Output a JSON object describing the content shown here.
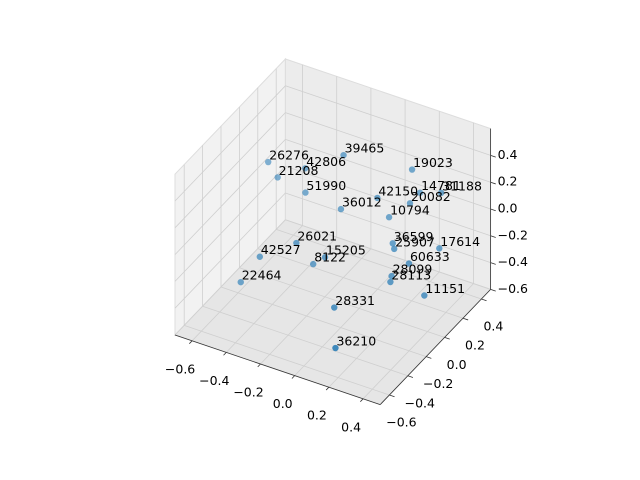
{
  "chart_data": {
    "type": "scatter3d",
    "color": "#1f77b4",
    "grid": true,
    "labels": [
      "39465",
      "26276",
      "42806",
      "21208",
      "19023",
      "42150",
      "14781",
      "31188",
      "20082",
      "51990",
      "36012",
      "10794",
      "26021",
      "36599",
      "25907",
      "17614",
      "15205",
      "42527",
      "8122",
      "60633",
      "22464",
      "28099",
      "28113",
      "11151",
      "28331",
      "36210"
    ],
    "x": [
      -0.15,
      -0.51,
      -0.32,
      -0.46,
      0.1,
      0.01,
      0.12,
      0.27,
      0.12,
      -0.33,
      -0.16,
      0.03,
      -0.27,
      0.1,
      0.13,
      0.27,
      -0.14,
      -0.43,
      -0.22,
      0.2,
      -0.52,
      0.12,
      0.14,
      0.29,
      0.0,
      0.12
    ],
    "y": [
      0.11,
      -0.04,
      0.01,
      -0.03,
      0.39,
      0.18,
      0.44,
      0.39,
      0.33,
      0.03,
      0.1,
      0.27,
      -0.18,
      0.18,
      0.14,
      0.37,
      -0.11,
      -0.28,
      -0.09,
      0.17,
      -0.32,
      0.13,
      0.08,
      0.17,
      -0.27,
      -0.48
    ],
    "z": [
      0.4,
      0.3,
      0.3,
      0.2,
      0.2,
      0.1,
      0.0,
      0.1,
      0.0,
      0.1,
      0.0,
      -0.1,
      -0.1,
      -0.2,
      -0.2,
      -0.3,
      -0.2,
      -0.2,
      -0.3,
      -0.3,
      -0.4,
      -0.4,
      -0.4,
      -0.5,
      -0.4,
      -0.5
    ],
    "xlim": [
      -0.7,
      0.5
    ],
    "ylim": [
      -0.7,
      0.5
    ],
    "zlim": [
      -0.6,
      0.6
    ],
    "xticks": [
      {
        "value": -0.6,
        "label": "−0.6"
      },
      {
        "value": -0.4,
        "label": "−0.4"
      },
      {
        "value": -0.2,
        "label": "−0.2"
      },
      {
        "value": 0,
        "label": "0.0"
      },
      {
        "value": 0.2,
        "label": "0.2"
      },
      {
        "value": 0.4,
        "label": "0.4"
      }
    ],
    "yticks": [
      {
        "value": -0.6,
        "label": "−0.6"
      },
      {
        "value": -0.4,
        "label": "−0.4"
      },
      {
        "value": -0.2,
        "label": "−0.2"
      },
      {
        "value": 0,
        "label": "0.0"
      },
      {
        "value": 0.2,
        "label": "0.2"
      },
      {
        "value": 0.4,
        "label": "0.4"
      }
    ],
    "zticks": [
      {
        "value": -0.6,
        "label": "−0.6"
      },
      {
        "value": -0.4,
        "label": "−0.4"
      },
      {
        "value": -0.2,
        "label": "−0.2"
      },
      {
        "value": 0,
        "label": "0.0"
      },
      {
        "value": 0.2,
        "label": "0.2"
      },
      {
        "value": 0.4,
        "label": "0.4"
      }
    ]
  }
}
